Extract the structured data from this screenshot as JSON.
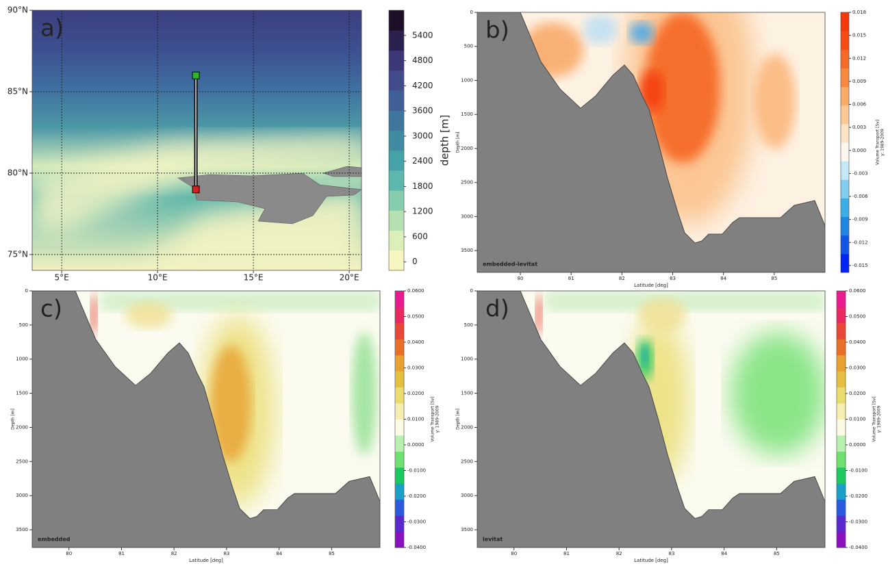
{
  "chart_data": [
    {
      "type": "map",
      "panel_label": "a)",
      "xlim": [
        3.46,
        20.64
      ],
      "ylim": [
        74.03,
        90
      ],
      "xticks": [
        {
          "value": 5,
          "label": "5°E"
        },
        {
          "value": 10,
          "label": "10°E"
        },
        {
          "value": 15,
          "label": "15°E"
        },
        {
          "value": 20,
          "label": "20°E"
        }
      ],
      "yticks": [
        {
          "value": 75,
          "label": "75°N"
        },
        {
          "value": 80,
          "label": "80°N"
        },
        {
          "value": 85,
          "label": "85°N"
        },
        {
          "value": 90,
          "label": "90°N"
        }
      ],
      "grid": true,
      "section": {
        "x": [
          12,
          12
        ],
        "y": [
          86,
          79
        ],
        "colors": [
          "#2fb52f",
          "#d42020"
        ]
      },
      "colorbar": {
        "label": "depth [m]",
        "lim": [
          -200,
          6000
        ],
        "ticks": [
          0,
          600,
          1200,
          1800,
          2400,
          3000,
          3600,
          4200,
          4800,
          5400
        ],
        "colors": [
          "#f7f5c0",
          "#dcefb8",
          "#b4e0b4",
          "#86cdb0",
          "#5cb8ab",
          "#45a2a6",
          "#3f8ca2",
          "#3f769d",
          "#405f97",
          "#424b8c",
          "#3c3877",
          "#2b2150",
          "#1d0f25"
        ]
      }
    },
    {
      "type": "contour",
      "panel_label": "b)",
      "run_label": "embedded-levitat",
      "xlabel": "Latitude [deg]",
      "ylabel": "Depth [m]",
      "xlim": [
        79.15,
        86.0
      ],
      "ylim": [
        3820,
        0
      ],
      "xticks": [
        80,
        81,
        82,
        83,
        84,
        85
      ],
      "yticks": [
        0,
        500,
        1000,
        1500,
        2000,
        2500,
        3000,
        3500
      ],
      "colorbar": {
        "label": "Volume Transport [Sv]",
        "sublabel": "y: 1989-2009",
        "lim": [
          -0.0159,
          0.018
        ],
        "ticks": [
          0.018,
          0.015,
          0.012,
          0.009,
          0.006,
          0.003,
          {
            "value": 0,
            "label": "0.000"
          },
          -0.003,
          -0.006,
          -0.009,
          -0.012,
          -0.015
        ],
        "colors": [
          "#0024f5",
          "#1256e8",
          "#1f86e4",
          "#3aaee8",
          "#80cdf0",
          "#c6e7f6",
          "#fdf6ee",
          "#fde3c6",
          "#fcc995",
          "#faab66",
          "#f88a40",
          "#f66a26",
          "#f44c12",
          "#f43a08"
        ]
      }
    },
    {
      "type": "contour",
      "panel_label": "c)",
      "run_label": "embedded",
      "xlabel": "Latitude [deg]",
      "ylabel": "Depth [m]",
      "xlim": [
        79.3,
        85.92
      ],
      "ylim": [
        3760,
        0
      ],
      "xticks": [
        80,
        81,
        82,
        83,
        84,
        85
      ],
      "yticks": [
        0,
        500,
        1000,
        1500,
        2000,
        2500,
        3000,
        3500
      ],
      "colorbar": {
        "label": "Volume Transport [Sv]",
        "sublabel": "y: 1989-2009",
        "lim": [
          -0.04,
          0.06
        ],
        "ticks": [
          {
            "value": 0.06,
            "label": "0.0600"
          },
          {
            "value": 0.05,
            "label": "0.0500"
          },
          {
            "value": 0.04,
            "label": "0.0400"
          },
          {
            "value": 0.03,
            "label": "0.0300"
          },
          {
            "value": 0.02,
            "label": "0.0200"
          },
          {
            "value": 0.01,
            "label": "0.0100"
          },
          {
            "value": 0,
            "label": "0.0000"
          },
          {
            "value": -0.01,
            "label": "-0.0100"
          },
          {
            "value": -0.02,
            "label": "-0.0200"
          },
          {
            "value": -0.03,
            "label": "-0.0300"
          },
          {
            "value": -0.04,
            "label": "-0.0400"
          }
        ],
        "colors": [
          "#8a10c0",
          "#5a2ad0",
          "#2a5ae0",
          "#1aa0c8",
          "#1cc860",
          "#70e070",
          "#b8f0b0",
          "#fdfbe6",
          "#f5eeb0",
          "#eadd70",
          "#e3c040",
          "#e8a030",
          "#e87028",
          "#e84838",
          "#e82a60",
          "#e81c90"
        ]
      }
    },
    {
      "type": "contour",
      "panel_label": "d)",
      "run_label": "levitat",
      "xlabel": "Latitude [deg]",
      "ylabel": "Depth [m]",
      "xlim": [
        79.3,
        85.92
      ],
      "ylim": [
        3760,
        0
      ],
      "xticks": [
        80,
        81,
        82,
        83,
        84,
        85
      ],
      "yticks": [
        0,
        500,
        1000,
        1500,
        2000,
        2500,
        3000,
        3500
      ],
      "colorbar": {
        "label": "Volume Transport [Sv]",
        "sublabel": "y: 1989-2009",
        "lim": [
          -0.04,
          0.06
        ],
        "ticks": [
          {
            "value": 0.06,
            "label": "0.0600"
          },
          {
            "value": 0.05,
            "label": "0.0500"
          },
          {
            "value": 0.04,
            "label": "0.0400"
          },
          {
            "value": 0.03,
            "label": "0.0300"
          },
          {
            "value": 0.02,
            "label": "0.0200"
          },
          {
            "value": 0.01,
            "label": "0.0100"
          },
          {
            "value": 0,
            "label": "0.0000"
          },
          {
            "value": -0.01,
            "label": "-0.0100"
          },
          {
            "value": -0.02,
            "label": "-0.0200"
          },
          {
            "value": -0.03,
            "label": "-0.0300"
          },
          {
            "value": -0.04,
            "label": "-0.0400"
          }
        ],
        "colors": [
          "#8a10c0",
          "#5a2ad0",
          "#2a5ae0",
          "#1aa0c8",
          "#1cc860",
          "#70e070",
          "#b8f0b0",
          "#fdfbe6",
          "#f5eeb0",
          "#eadd70",
          "#e3c040",
          "#e8a030",
          "#e87028",
          "#e84838",
          "#e82a60",
          "#e81c90"
        ]
      }
    }
  ]
}
